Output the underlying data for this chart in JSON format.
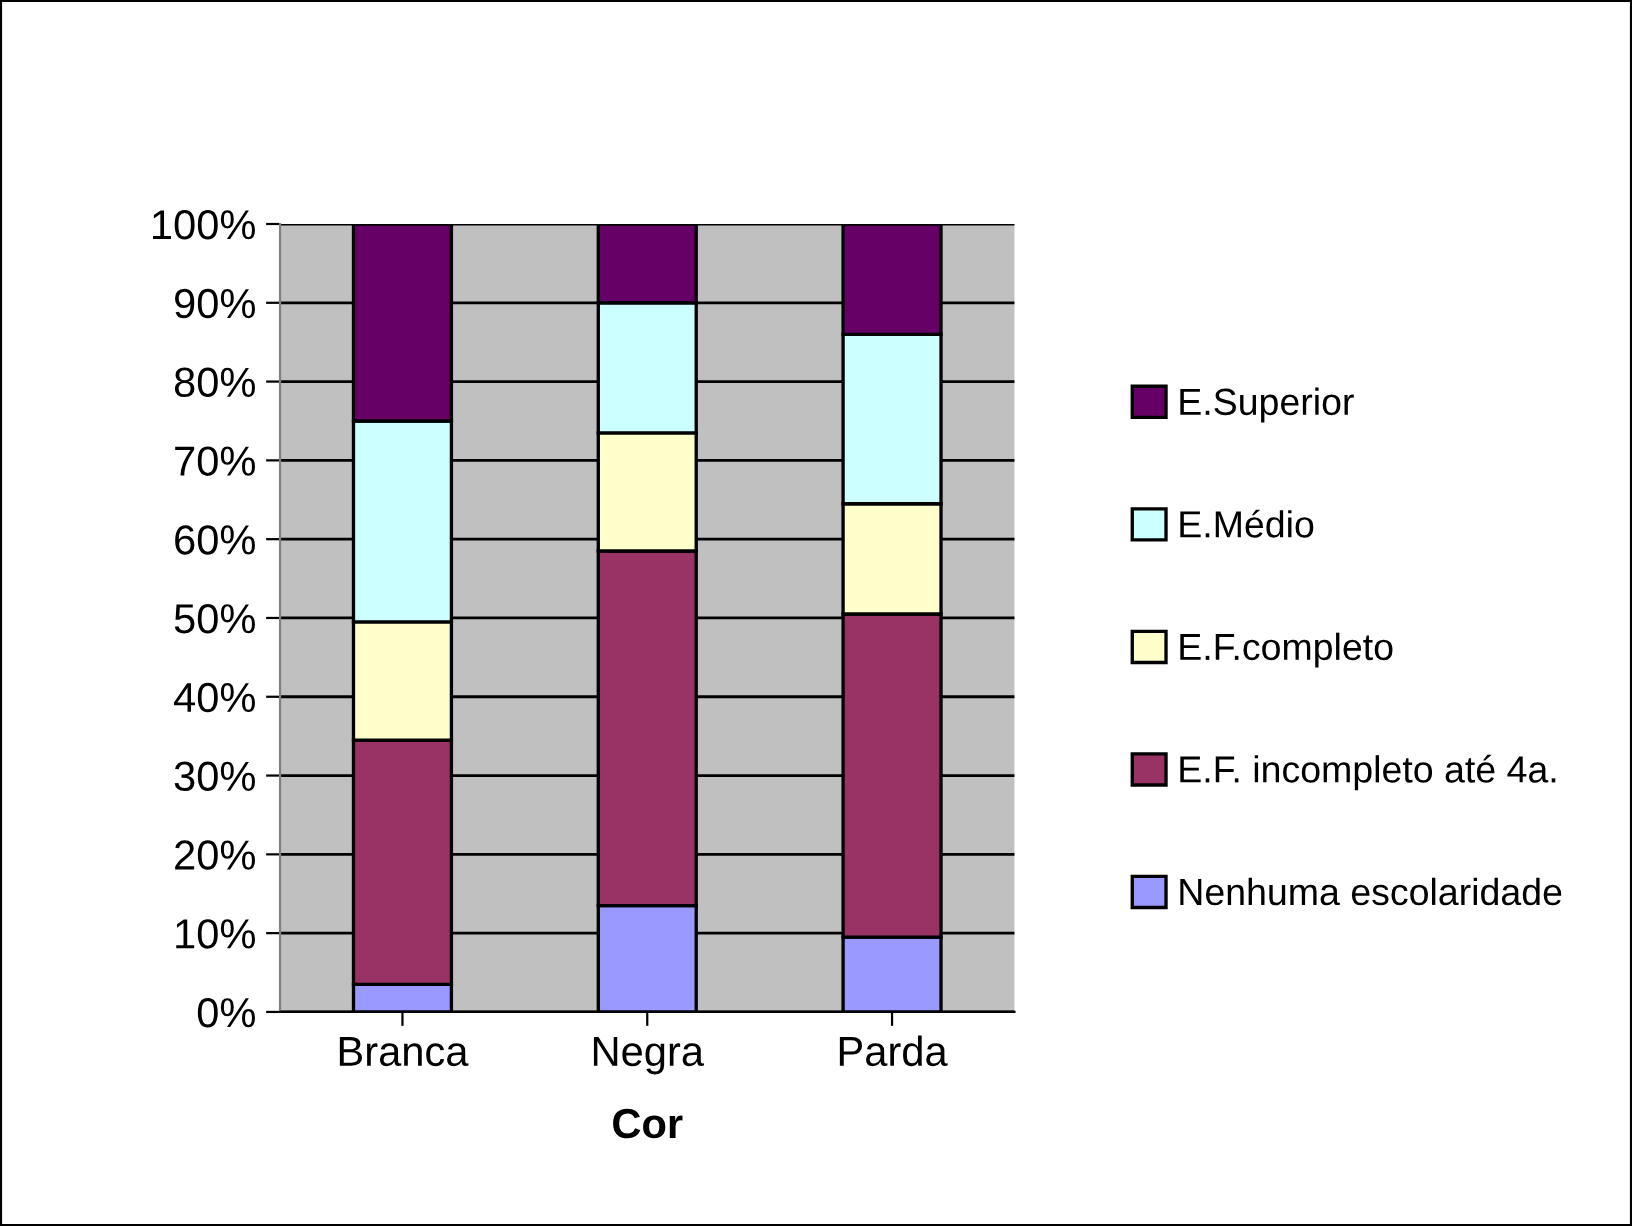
{
  "chart_data": {
    "type": "bar",
    "stacked": true,
    "xlabel": "Cor",
    "categories": [
      "Branca",
      "Negra",
      "Parda"
    ],
    "series": [
      {
        "name": "Nenhuma escolaridade",
        "color": "#9999ff",
        "values": [
          3.5,
          13.5,
          9.5
        ]
      },
      {
        "name": "E.F. incompleto até 4a.",
        "color": "#993366",
        "values": [
          31,
          45,
          41
        ]
      },
      {
        "name": "E.F.completo",
        "color": "#ffffcc",
        "values": [
          15,
          15,
          14
        ]
      },
      {
        "name": "E.Médio",
        "color": "#ccffff",
        "values": [
          25.5,
          16.5,
          21.5
        ]
      },
      {
        "name": "E.Superior",
        "color": "#660066",
        "values": [
          25,
          10,
          14
        ]
      }
    ],
    "ylim": [
      0,
      100
    ],
    "yticks": [
      {
        "value": 0,
        "label": "0%"
      },
      {
        "value": 10,
        "label": "10%"
      },
      {
        "value": 20,
        "label": "20%"
      },
      {
        "value": 30,
        "label": "30%"
      },
      {
        "value": 40,
        "label": "40%"
      },
      {
        "value": 50,
        "label": "50%"
      },
      {
        "value": 60,
        "label": "60%"
      },
      {
        "value": 70,
        "label": "70%"
      },
      {
        "value": 80,
        "label": "80%"
      },
      {
        "value": 90,
        "label": "90%"
      },
      {
        "value": 100,
        "label": "100%"
      }
    ],
    "grid": "y",
    "legend": "right"
  }
}
